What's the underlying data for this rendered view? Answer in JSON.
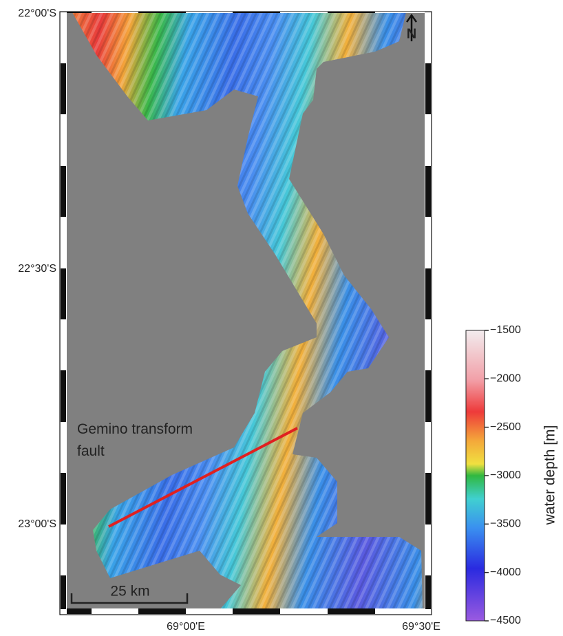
{
  "map": {
    "lat_labels": [
      "22°00'S",
      "22°30'S",
      "23°00'S"
    ],
    "lon_labels": [
      "69°00'E",
      "69°30'E"
    ],
    "north_label": "N",
    "annotation": "Gemino transform\nfault",
    "scale_bar": "25 km",
    "colorbar": {
      "label": "water depth [m]",
      "lim": [
        -4500,
        -1500
      ],
      "ticks": [
        {
          "value": -1500,
          "label": "−1500"
        },
        {
          "value": -2000,
          "label": "−2000"
        },
        {
          "value": -2500,
          "label": "−2500"
        },
        {
          "value": -3000,
          "label": "−3000"
        },
        {
          "value": -3500,
          "label": "−3500"
        },
        {
          "value": -4000,
          "label": "−4000"
        },
        {
          "value": -4500,
          "label": "−4500"
        }
      ]
    }
  }
}
